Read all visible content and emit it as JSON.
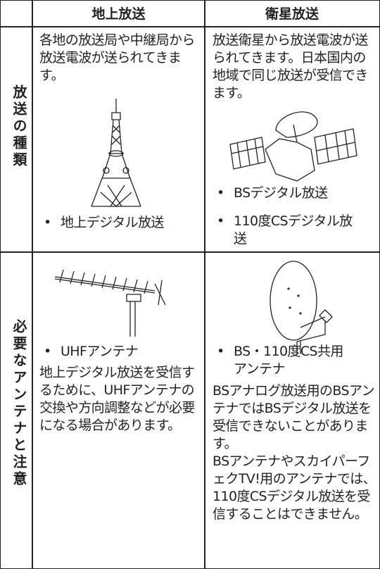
{
  "table": {
    "headers": [
      "地上放送",
      "衛星放送"
    ],
    "rows": [
      {
        "label": "放送の種類",
        "cells": [
          {
            "text": "各地の放送局や中継局から放送電波が送られてきます。",
            "bullets": [
              "地上デジタル放送"
            ]
          },
          {
            "text": "放送衛星から放送電波が送られてきます。日本国内の地域で同じ放送が受信できます。",
            "bullets": [
              "BSデジタル放送",
              "110度CSデジタル放送"
            ]
          }
        ]
      },
      {
        "label": "必要なアンテナと注意",
        "cells": [
          {
            "bullets": [
              "UHFアンテナ"
            ],
            "notes": [
              "地上デジタル放送を受信するために、UHFアンテナの交換や方向調整などが必要になる場合があります。"
            ]
          },
          {
            "bullets": [
              "BS・110度CS共用アンテナ"
            ],
            "notes": [
              "BSアナログ放送用のBSアンテナではBSデジタル放送を受信できないことがあります。",
              "BSアンテナやスカイパーフェクTV!用のアンテナでは、110度CSデジタル放送を受信することはできません。"
            ]
          }
        ]
      }
    ]
  }
}
